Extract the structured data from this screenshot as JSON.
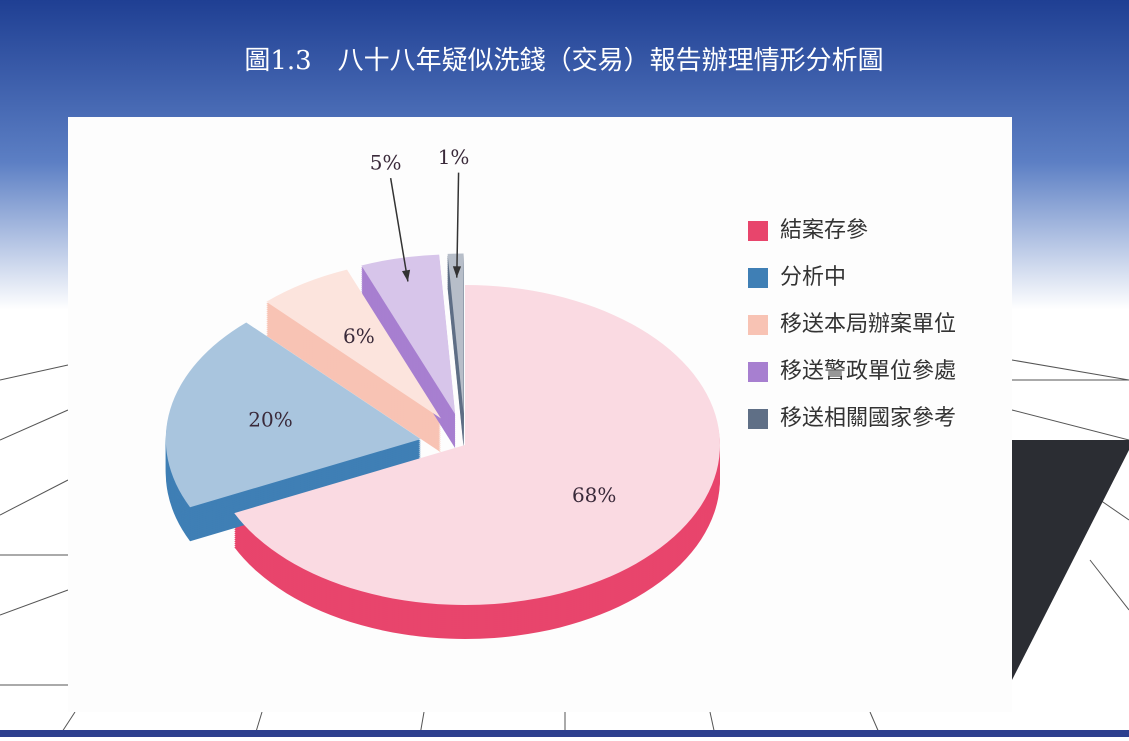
{
  "chart_data": {
    "type": "pie",
    "title": "圖1.3　八十八年疑似洗錢（交易）報告辦理情形分析圖",
    "categories": [
      "結案存參",
      "分析中",
      "移送本局辦案單位",
      "移送警政單位參處",
      "移送相關國家參考"
    ],
    "values": [
      68,
      20,
      6,
      5,
      1
    ],
    "value_labels": [
      "68%",
      "20%",
      "6%",
      "5%",
      "1%"
    ],
    "colors": [
      "#e8456c",
      "#3f7fb5",
      "#f8c3b4",
      "#a77fd0",
      "#5f6f86"
    ],
    "legend": "right"
  }
}
